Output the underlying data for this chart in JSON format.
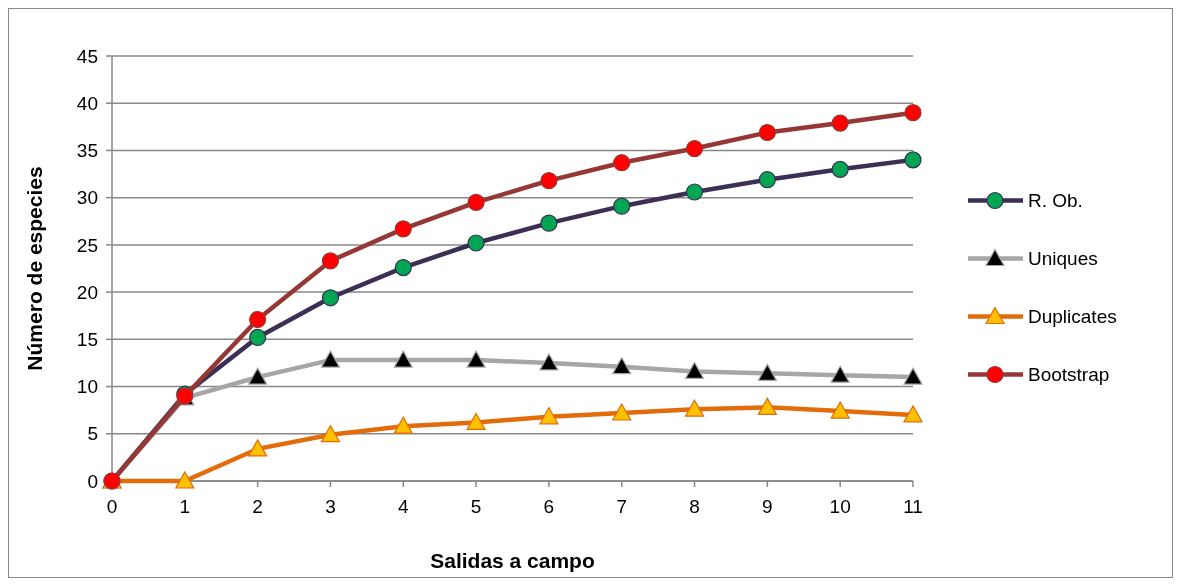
{
  "chart_data": {
    "type": "line",
    "xlabel": "Salidas a campo",
    "ylabel": "Número de especies",
    "x": [
      0,
      1,
      2,
      3,
      4,
      5,
      6,
      7,
      8,
      9,
      10,
      11
    ],
    "xlim": [
      0,
      11
    ],
    "xticks": [
      0,
      1,
      2,
      3,
      4,
      5,
      6,
      7,
      8,
      9,
      10,
      11
    ],
    "ylim": [
      0,
      45
    ],
    "yticks": [
      0,
      5,
      10,
      15,
      20,
      25,
      30,
      35,
      40,
      45
    ],
    "grid": "y",
    "legend": "right",
    "series": [
      {
        "name": "R. Ob.",
        "color": "#3b2f55",
        "marker": "circle",
        "colors": [
          "#00a651",
          "#00a651",
          "#00a651",
          "#00a651",
          "#00a651",
          "#00a651",
          "#00a651",
          "#00a651",
          "#00a651",
          "#00a651",
          "#00a651",
          "#00a651"
        ],
        "values": [
          0,
          9.2,
          15.2,
          19.4,
          22.6,
          25.2,
          27.3,
          29.1,
          30.6,
          31.9,
          33,
          34
        ]
      },
      {
        "name": "Uniques",
        "color": "#a6a6a6",
        "marker": "triangle",
        "colors": [
          "#000000",
          "#000000",
          "#000000",
          "#000000",
          "#000000",
          "#000000",
          "#000000",
          "#000000",
          "#000000",
          "#000000",
          "#000000",
          "#000000"
        ],
        "values": [
          0,
          8.8,
          11,
          12.8,
          12.8,
          12.8,
          12.5,
          12.1,
          11.6,
          11.4,
          11.2,
          11
        ]
      },
      {
        "name": "Duplicates",
        "color": "#e36c0a",
        "marker": "triangle",
        "colors": [
          "#ffc000",
          "#ffc000",
          "#ffc000",
          "#ffc000",
          "#ffc000",
          "#ffc000",
          "#ffc000",
          "#ffc000",
          "#ffc000",
          "#ffc000",
          "#ffc000",
          "#ffc000"
        ],
        "values": [
          0,
          0,
          3.4,
          4.9,
          5.8,
          6.2,
          6.8,
          7.2,
          7.6,
          7.8,
          7.4,
          7
        ]
      },
      {
        "name": "Bootstrap",
        "color": "#953735",
        "marker": "circle",
        "colors": [
          "#ff0000",
          "#ff0000",
          "#ff0000",
          "#ff0000",
          "#ff0000",
          "#ff0000",
          "#ff0000",
          "#ff0000",
          "#ff0000",
          "#ff0000",
          "#ff0000",
          "#ff0000"
        ],
        "values": [
          0,
          9,
          17.1,
          23.3,
          26.7,
          29.5,
          31.8,
          33.7,
          35.2,
          36.9,
          37.9,
          39
        ]
      }
    ]
  }
}
